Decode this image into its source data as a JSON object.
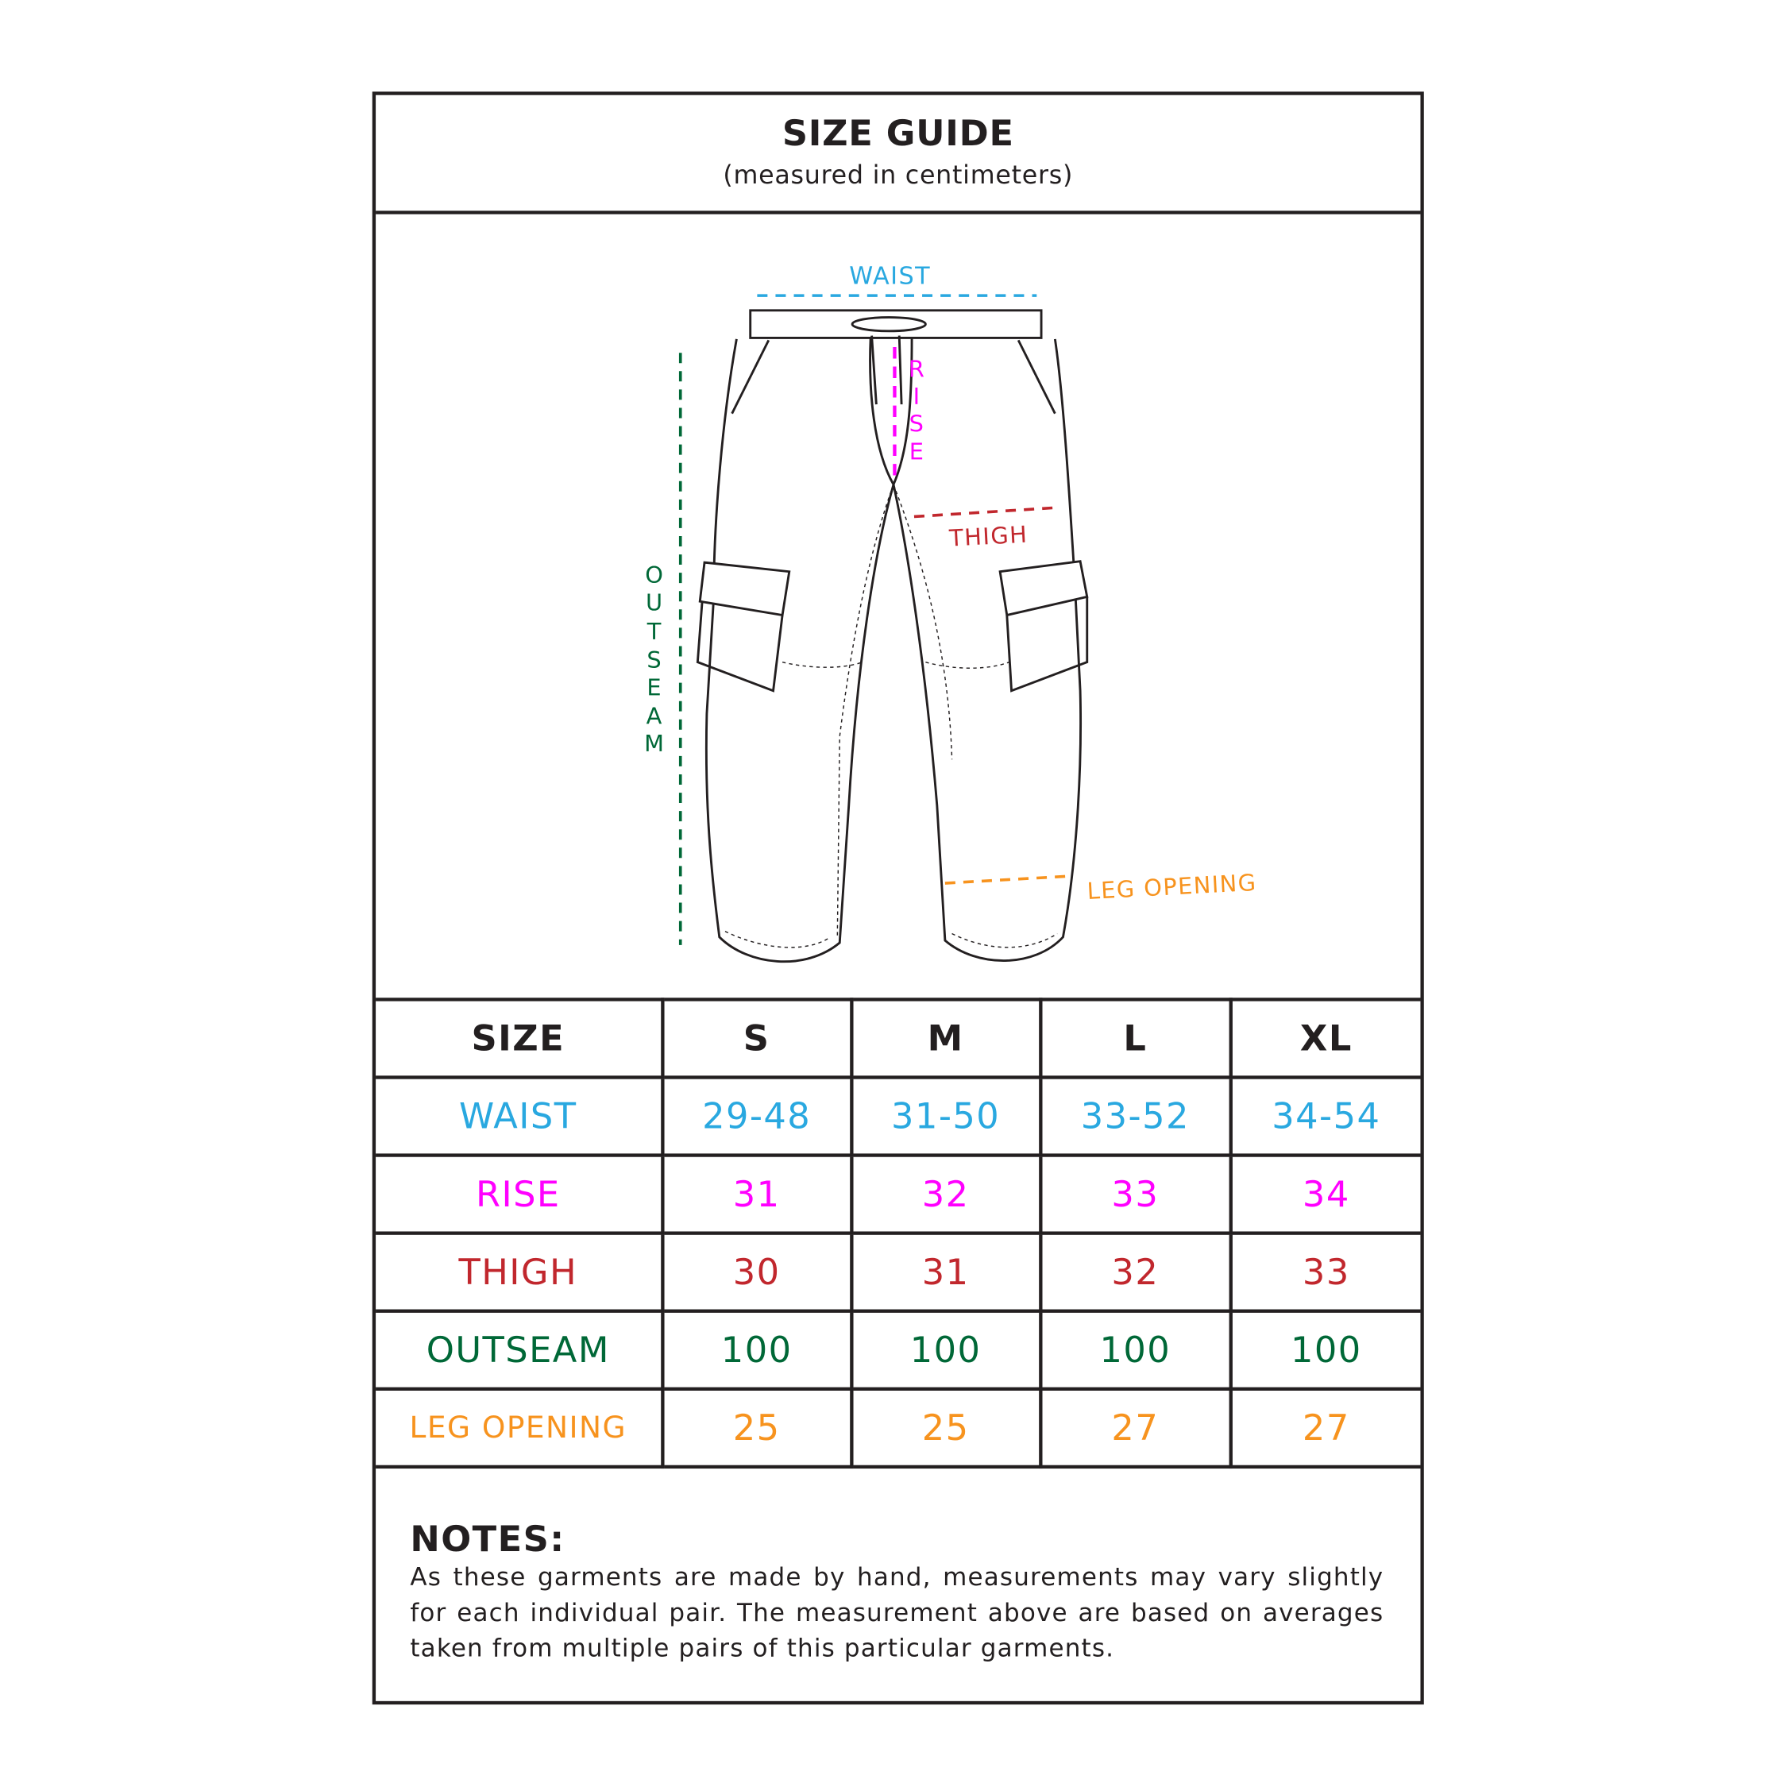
{
  "header": {
    "title": "SIZE GUIDE",
    "subtitle": "(measured in centimeters)"
  },
  "colors": {
    "waist": "#29a8e0",
    "rise": "#ff00ff",
    "thigh": "#c1272d",
    "outseam": "#006837",
    "leg_opening": "#f7931e",
    "border": "#231f20"
  },
  "diagram": {
    "labels": {
      "waist": "WAIST",
      "rise": "RISE",
      "thigh": "THIGH",
      "outseam": "OUTSEAM",
      "leg_opening": "LEG OPENING"
    }
  },
  "table": {
    "header": [
      "SIZE",
      "S",
      "M",
      "L",
      "XL"
    ],
    "rows": [
      {
        "key": "waist",
        "label": "WAIST",
        "values": [
          "29-48",
          "31-50",
          "33-52",
          "34-54"
        ]
      },
      {
        "key": "rise",
        "label": "RISE",
        "values": [
          "31",
          "32",
          "33",
          "34"
        ]
      },
      {
        "key": "thigh",
        "label": "THIGH",
        "values": [
          "30",
          "31",
          "32",
          "33"
        ]
      },
      {
        "key": "outseam",
        "label": "OUTSEAM",
        "values": [
          "100",
          "100",
          "100",
          "100"
        ]
      },
      {
        "key": "leg_opening",
        "label": "LEG OPENING",
        "values": [
          "25",
          "25",
          "27",
          "27"
        ]
      }
    ]
  },
  "notes": {
    "title": "NOTES:",
    "text": "As these garments are made by hand, measurements may vary slightly for each individual pair. The measurement above are based on averages taken from multiple pairs of this particular garments."
  }
}
